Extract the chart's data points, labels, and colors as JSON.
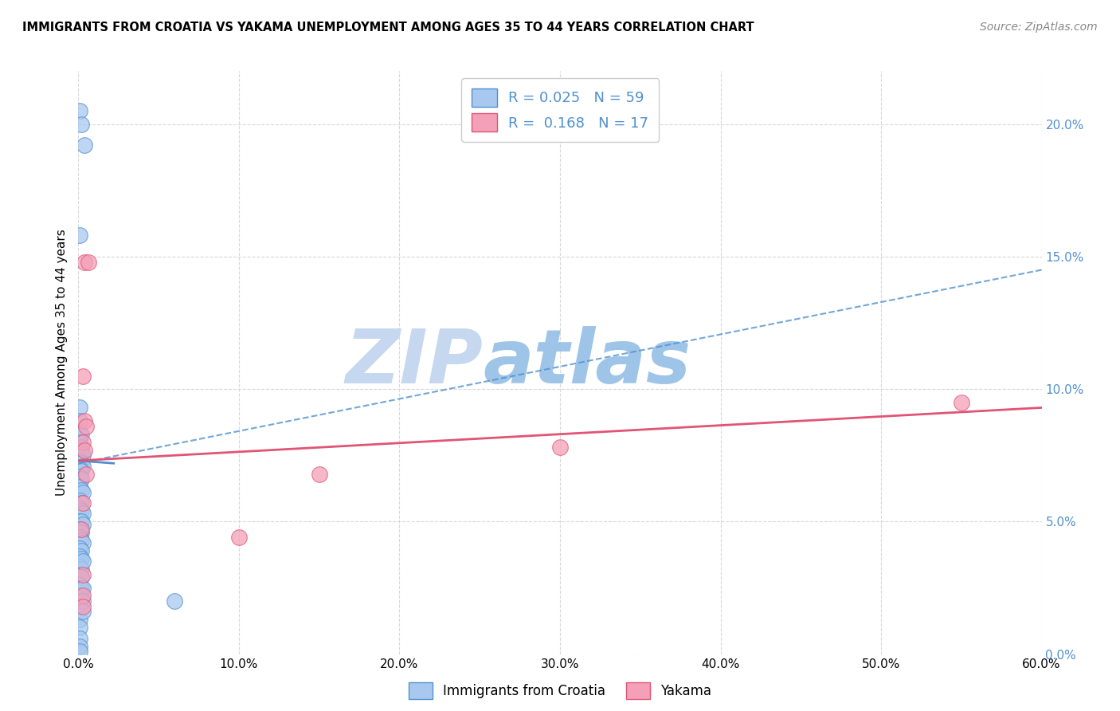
{
  "title": "IMMIGRANTS FROM CROATIA VS YAKAMA UNEMPLOYMENT AMONG AGES 35 TO 44 YEARS CORRELATION CHART",
  "source": "Source: ZipAtlas.com",
  "ylabel": "Unemployment Among Ages 35 to 44 years",
  "legend_label_1": "Immigrants from Croatia",
  "legend_label_2": "Yakama",
  "R1": "0.025",
  "N1": "59",
  "R2": "0.168",
  "N2": "17",
  "xlim": [
    0.0,
    0.6
  ],
  "ylim": [
    0.0,
    0.22
  ],
  "xticks": [
    0.0,
    0.1,
    0.2,
    0.3,
    0.4,
    0.5,
    0.6
  ],
  "yticks": [
    0.0,
    0.05,
    0.1,
    0.15,
    0.2
  ],
  "ytick_labels": [
    "0.0%",
    "5.0%",
    "10.0%",
    "15.0%",
    "20.0%"
  ],
  "xtick_labels": [
    "0.0%",
    "10.0%",
    "20.0%",
    "30.0%",
    "40.0%",
    "50.0%",
    "60.0%"
  ],
  "color_blue": "#a8c8f0",
  "color_pink": "#f4a0b8",
  "line_color_blue": "#5090d0",
  "line_color_pink": "#e05575",
  "blue_line_x": [
    0.0,
    0.6
  ],
  "blue_line_y": [
    0.072,
    0.145
  ],
  "pink_line_x": [
    0.0,
    0.6
  ],
  "pink_line_y": [
    0.073,
    0.093
  ],
  "blue_short_line_x": [
    0.0,
    0.022
  ],
  "blue_short_line_y": [
    0.073,
    0.072
  ],
  "scatter_blue": [
    [
      0.001,
      0.205
    ],
    [
      0.002,
      0.2
    ],
    [
      0.004,
      0.192
    ],
    [
      0.001,
      0.158
    ],
    [
      0.001,
      0.093
    ],
    [
      0.001,
      0.088
    ],
    [
      0.001,
      0.083
    ],
    [
      0.002,
      0.083
    ],
    [
      0.001,
      0.08
    ],
    [
      0.002,
      0.078
    ],
    [
      0.001,
      0.077
    ],
    [
      0.002,
      0.076
    ],
    [
      0.003,
      0.075
    ],
    [
      0.001,
      0.073
    ],
    [
      0.002,
      0.072
    ],
    [
      0.003,
      0.071
    ],
    [
      0.001,
      0.07
    ],
    [
      0.002,
      0.069
    ],
    [
      0.001,
      0.067
    ],
    [
      0.002,
      0.066
    ],
    [
      0.001,
      0.063
    ],
    [
      0.002,
      0.062
    ],
    [
      0.003,
      0.061
    ],
    [
      0.001,
      0.058
    ],
    [
      0.002,
      0.057
    ],
    [
      0.001,
      0.055
    ],
    [
      0.002,
      0.054
    ],
    [
      0.003,
      0.053
    ],
    [
      0.001,
      0.05
    ],
    [
      0.002,
      0.05
    ],
    [
      0.003,
      0.049
    ],
    [
      0.001,
      0.047
    ],
    [
      0.002,
      0.046
    ],
    [
      0.001,
      0.044
    ],
    [
      0.002,
      0.043
    ],
    [
      0.003,
      0.042
    ],
    [
      0.001,
      0.04
    ],
    [
      0.002,
      0.039
    ],
    [
      0.001,
      0.037
    ],
    [
      0.002,
      0.036
    ],
    [
      0.001,
      0.033
    ],
    [
      0.002,
      0.032
    ],
    [
      0.001,
      0.03
    ],
    [
      0.002,
      0.029
    ],
    [
      0.001,
      0.026
    ],
    [
      0.002,
      0.025
    ],
    [
      0.001,
      0.022
    ],
    [
      0.002,
      0.021
    ],
    [
      0.001,
      0.018
    ],
    [
      0.001,
      0.013
    ],
    [
      0.001,
      0.01
    ],
    [
      0.001,
      0.006
    ],
    [
      0.001,
      0.003
    ],
    [
      0.001,
      0.001
    ],
    [
      0.003,
      0.035
    ],
    [
      0.003,
      0.025
    ],
    [
      0.003,
      0.02
    ],
    [
      0.003,
      0.016
    ],
    [
      0.06,
      0.02
    ]
  ],
  "scatter_pink": [
    [
      0.004,
      0.148
    ],
    [
      0.006,
      0.148
    ],
    [
      0.003,
      0.105
    ],
    [
      0.004,
      0.088
    ],
    [
      0.005,
      0.086
    ],
    [
      0.003,
      0.08
    ],
    [
      0.004,
      0.077
    ],
    [
      0.005,
      0.068
    ],
    [
      0.003,
      0.057
    ],
    [
      0.15,
      0.068
    ],
    [
      0.3,
      0.078
    ],
    [
      0.002,
      0.047
    ],
    [
      0.003,
      0.03
    ],
    [
      0.003,
      0.022
    ],
    [
      0.003,
      0.018
    ],
    [
      0.55,
      0.095
    ],
    [
      0.1,
      0.044
    ]
  ],
  "watermark_zip": "ZIP",
  "watermark_atlas": "atlas",
  "watermark_color_zip": "#c5d8f0",
  "watermark_color_atlas": "#9ec5e8",
  "background_color": "#ffffff",
  "grid_color": "#d8d8d8"
}
